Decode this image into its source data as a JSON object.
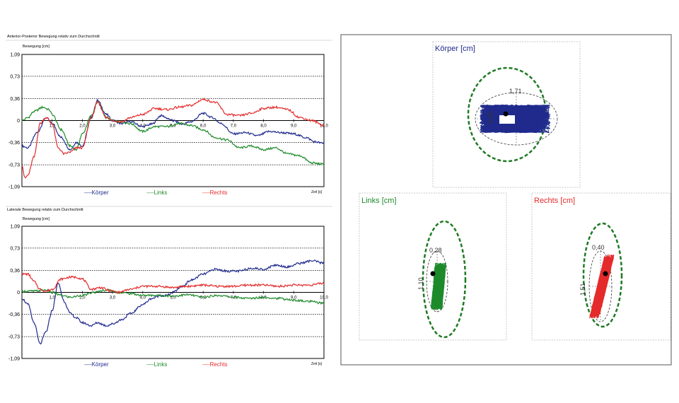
{
  "colors": {
    "koerper": "#1f2a8c",
    "links": "#1d8a2a",
    "rechts": "#e42a2a",
    "ellipse_outer": "#1e7a22"
  },
  "chart_data": [
    {
      "type": "line",
      "title": "Anterior-Posterior Bewegung relativ zum Durchschnitt",
      "ylabel": "Bewegung [cm]",
      "xlabel": "Zeit [s]",
      "xlim": [
        0,
        10
      ],
      "ylim": [
        -1.09,
        1.09
      ],
      "ytick_labels": [
        "1,09",
        "0,73",
        "0,36",
        "0",
        "-0,36",
        "-0,73",
        "-1,09"
      ],
      "yticks": [
        1.09,
        0.73,
        0.36,
        0,
        -0.36,
        -0.73,
        -1.09
      ],
      "xtick_labels": [
        "1,0",
        "2,0",
        "3,0",
        "4,0",
        "5,0",
        "6,0",
        "7,0",
        "8,0",
        "9,0",
        "10,0"
      ],
      "xticks": [
        1,
        2,
        3,
        4,
        5,
        6,
        7,
        8,
        9,
        10
      ],
      "legend": [
        "----Körper",
        "----Links",
        "----Rechts"
      ],
      "series": [
        {
          "name": "Körper",
          "x": [
            0,
            0.2,
            0.5,
            0.8,
            1.0,
            1.3,
            1.6,
            1.8,
            2.0,
            2.3,
            2.5,
            2.8,
            3.0,
            3.3,
            3.6,
            4.0,
            4.3,
            4.6,
            5.0,
            5.3,
            5.6,
            6.0,
            6.3,
            6.6,
            7.0,
            7.4,
            7.8,
            8.2,
            8.6,
            9.0,
            9.4,
            9.7,
            10.0
          ],
          "y": [
            -0.42,
            -0.45,
            -0.2,
            0.05,
            -0.05,
            -0.28,
            -0.48,
            -0.36,
            -0.42,
            0.05,
            0.33,
            0.1,
            0.0,
            -0.05,
            -0.02,
            -0.1,
            -0.06,
            0.08,
            0.0,
            -0.06,
            -0.02,
            0.12,
            0.05,
            -0.05,
            -0.22,
            -0.2,
            -0.25,
            -0.18,
            -0.2,
            -0.22,
            -0.28,
            -0.35,
            -0.38
          ]
        },
        {
          "name": "Links",
          "x": [
            0,
            0.2,
            0.4,
            0.7,
            0.9,
            1.0,
            1.3,
            1.6,
            1.8,
            2.0,
            2.3,
            2.5,
            2.8,
            3.0,
            3.3,
            3.6,
            4.0,
            4.4,
            4.8,
            5.2,
            5.6,
            6.0,
            6.4,
            6.8,
            7.2,
            7.6,
            8.0,
            8.4,
            8.8,
            9.2,
            9.6,
            10.0
          ],
          "y": [
            0.0,
            0.05,
            0.15,
            0.22,
            0.18,
            0.1,
            -0.15,
            -0.42,
            -0.48,
            -0.22,
            0.08,
            0.3,
            0.05,
            0.0,
            -0.02,
            -0.05,
            -0.18,
            -0.1,
            -0.1,
            -0.05,
            -0.08,
            -0.15,
            -0.28,
            -0.32,
            -0.45,
            -0.42,
            -0.48,
            -0.45,
            -0.55,
            -0.58,
            -0.7,
            -0.72
          ]
        },
        {
          "name": "Rechts",
          "x": [
            0,
            0.1,
            0.2,
            0.4,
            0.6,
            0.8,
            1.0,
            1.2,
            1.4,
            1.6,
            1.8,
            2.0,
            2.3,
            2.5,
            2.8,
            3.0,
            3.3,
            3.6,
            4.0,
            4.4,
            4.8,
            5.2,
            5.6,
            6.0,
            6.4,
            6.8,
            7.2,
            7.6,
            8.0,
            8.4,
            8.8,
            9.2,
            9.6,
            10.0
          ],
          "y": [
            -0.72,
            -0.95,
            -0.9,
            -0.6,
            -0.05,
            0.05,
            -0.05,
            -0.45,
            -0.55,
            -0.52,
            -0.45,
            -0.45,
            0.05,
            0.3,
            0.05,
            0.0,
            -0.02,
            0.05,
            0.1,
            0.2,
            0.18,
            0.22,
            0.25,
            0.35,
            0.3,
            0.1,
            0.08,
            0.12,
            0.2,
            0.22,
            0.18,
            0.05,
            0.0,
            -0.08
          ]
        }
      ]
    },
    {
      "type": "line",
      "title": "Laterale Bewegung relativ zum Durchschnitt",
      "ylabel": "Bewegung [cm]",
      "xlabel": "Zeit [s]",
      "xlim": [
        0,
        10
      ],
      "ylim": [
        -1.09,
        1.09
      ],
      "ytick_labels": [
        "1,09",
        "0,73",
        "0,36",
        "0",
        "-0,36",
        "-0,73",
        "-1,09"
      ],
      "yticks": [
        1.09,
        0.73,
        0.36,
        0,
        -0.36,
        -0.73,
        -1.09
      ],
      "xtick_labels": [
        "1,0",
        "2,0",
        "3,0",
        "4,0",
        "5,0",
        "6,0",
        "7,0",
        "8,0",
        "9,0",
        "10,0"
      ],
      "xticks": [
        1,
        2,
        3,
        4,
        5,
        6,
        7,
        8,
        9,
        10
      ],
      "legend": [
        "----Körper",
        "----Links",
        "----Rechts"
      ],
      "series": [
        {
          "name": "Körper",
          "x": [
            0,
            0.2,
            0.4,
            0.6,
            0.8,
            1.0,
            1.2,
            1.4,
            1.6,
            1.8,
            2.0,
            2.3,
            2.5,
            2.8,
            3.0,
            3.3,
            3.6,
            4.0,
            4.3,
            4.6,
            4.8,
            5.0,
            5.3,
            5.6,
            6.0,
            6.4,
            6.8,
            7.2,
            7.6,
            8.0,
            8.4,
            8.8,
            9.2,
            9.6,
            10.0
          ],
          "y": [
            -0.1,
            -0.2,
            -0.5,
            -0.85,
            -0.65,
            -0.3,
            0.15,
            -0.15,
            -0.35,
            -0.42,
            -0.5,
            -0.55,
            -0.5,
            -0.55,
            -0.52,
            -0.45,
            -0.35,
            -0.2,
            -0.1,
            -0.05,
            -0.05,
            0.0,
            0.1,
            0.2,
            0.3,
            0.38,
            0.35,
            0.35,
            0.4,
            0.38,
            0.45,
            0.42,
            0.48,
            0.52,
            0.48
          ]
        },
        {
          "name": "Links",
          "x": [
            0,
            0.4,
            0.8,
            1.0,
            1.3,
            1.6,
            2.0,
            2.4,
            2.8,
            3.2,
            3.6,
            4.0,
            4.5,
            5.0,
            5.5,
            6.0,
            6.5,
            7.0,
            7.5,
            8.0,
            8.5,
            9.0,
            9.5,
            10.0
          ],
          "y": [
            0.02,
            0.02,
            0.04,
            0.0,
            -0.05,
            -0.08,
            -0.05,
            0.0,
            0.04,
            0.0,
            -0.02,
            -0.05,
            -0.05,
            -0.06,
            -0.04,
            -0.08,
            -0.05,
            -0.08,
            -0.1,
            -0.08,
            -0.1,
            -0.13,
            -0.15,
            -0.18
          ]
        },
        {
          "name": "Rechts",
          "x": [
            0,
            0.2,
            0.4,
            0.6,
            0.8,
            1.0,
            1.3,
            1.6,
            1.8,
            2.0,
            2.3,
            2.6,
            2.9,
            3.2,
            3.6,
            4.0,
            4.5,
            5.0,
            5.5,
            6.0,
            6.5,
            7.0,
            7.5,
            8.0,
            8.5,
            9.0,
            9.5,
            10.0
          ],
          "y": [
            0.3,
            0.3,
            0.18,
            0.05,
            0.02,
            0.05,
            0.22,
            0.25,
            0.25,
            0.22,
            0.05,
            0.08,
            0.03,
            0.0,
            0.05,
            0.1,
            0.1,
            0.08,
            0.1,
            0.12,
            0.1,
            0.1,
            0.12,
            0.12,
            0.1,
            0.12,
            0.12,
            0.15
          ]
        }
      ]
    },
    {
      "type": "scatter",
      "title": "Körper [cm]",
      "color_key": "koerper",
      "ellipse_labels": [
        "1,71",
        "0,65"
      ],
      "ellipse_values": [
        1.71,
        0.65
      ]
    },
    {
      "type": "scatter",
      "title": "Links [cm]",
      "color_key": "links",
      "ellipse_labels": [
        "0,28",
        "1,10"
      ],
      "ellipse_values": [
        0.28,
        1.1
      ]
    },
    {
      "type": "scatter",
      "title": "Rechts [cm]",
      "color_key": "rechts",
      "ellipse_labels": [
        "0,40",
        "1,51"
      ],
      "ellipse_values": [
        0.4,
        1.51
      ]
    }
  ]
}
